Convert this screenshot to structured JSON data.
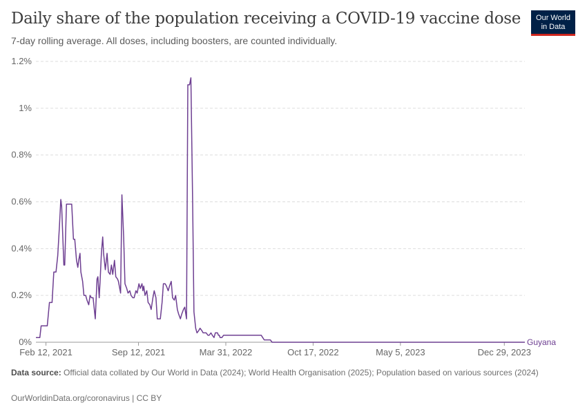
{
  "header": {
    "title": "Daily share of the population receiving a COVID-19 vaccine dose",
    "subtitle": "7-day rolling average. All doses, including boosters, are counted individually.",
    "logo_line1": "Our World",
    "logo_line2": "in Data"
  },
  "footer": {
    "source_label": "Data source:",
    "source_text": "Official data collated by Our World in Data (2024); World Health Organisation (2025); Population based on various sources (2024)",
    "license": "OurWorldinData.org/coronavirus | CC BY"
  },
  "colors": {
    "series": "#6d3e91",
    "grid": "#dddddd",
    "axis": "#999999",
    "text": "#666666"
  },
  "chart_data": {
    "type": "line",
    "ylim": [
      0,
      1.2
    ],
    "y_ticks": [
      0,
      0.2,
      0.4,
      0.6,
      0.8,
      1,
      1.2
    ],
    "y_tick_labels": [
      "0%",
      "0.2%",
      "0.4%",
      "0.6%",
      "0.8%",
      "1%",
      "1.2%"
    ],
    "xlim": [
      "2021-01-20",
      "2024-02-14"
    ],
    "x_ticks": [
      "2021-02-12",
      "2021-09-12",
      "2022-03-31",
      "2022-10-17",
      "2023-05-05",
      "2023-12-29"
    ],
    "x_tick_labels": [
      "Feb 12, 2021",
      "Sep 12, 2021",
      "Mar 31, 2022",
      "Oct 17, 2022",
      "May 5, 2023",
      "Dec 29, 2023"
    ],
    "grid": true,
    "series": [
      {
        "name": "Guyana",
        "x": [
          "2021-01-20",
          "2021-01-29",
          "2021-02-01",
          "2021-02-15",
          "2021-02-20",
          "2021-02-26",
          "2021-03-02",
          "2021-03-07",
          "2021-03-11",
          "2021-03-15",
          "2021-03-18",
          "2021-03-20",
          "2021-03-25",
          "2021-03-27",
          "2021-03-31",
          "2021-04-05",
          "2021-04-12",
          "2021-04-16",
          "2021-04-19",
          "2021-04-23",
          "2021-04-26",
          "2021-04-28",
          "2021-05-01",
          "2021-05-03",
          "2021-05-07",
          "2021-05-10",
          "2021-05-14",
          "2021-05-17",
          "2021-05-21",
          "2021-05-24",
          "2021-05-27",
          "2021-05-31",
          "2021-06-05",
          "2021-06-09",
          "2021-06-11",
          "2021-06-14",
          "2021-06-16",
          "2021-06-19",
          "2021-06-22",
          "2021-06-24",
          "2021-06-28",
          "2021-07-02",
          "2021-07-05",
          "2021-07-09",
          "2021-07-12",
          "2021-07-15",
          "2021-07-19",
          "2021-07-22",
          "2021-07-26",
          "2021-07-28",
          "2021-08-02",
          "2021-08-05",
          "2021-08-09",
          "2021-08-12",
          "2021-08-16",
          "2021-08-19",
          "2021-08-23",
          "2021-08-26",
          "2021-08-30",
          "2021-09-02",
          "2021-09-06",
          "2021-09-09",
          "2021-09-13",
          "2021-09-16",
          "2021-09-20",
          "2021-09-22",
          "2021-09-24",
          "2021-09-27",
          "2021-10-01",
          "2021-10-04",
          "2021-10-08",
          "2021-10-11",
          "2021-10-15",
          "2021-10-18",
          "2021-10-22",
          "2021-10-25",
          "2021-10-29",
          "2021-11-01",
          "2021-11-05",
          "2021-11-08",
          "2021-11-12",
          "2021-11-15",
          "2021-11-19",
          "2021-11-22",
          "2021-11-26",
          "2021-11-29",
          "2021-12-03",
          "2021-12-06",
          "2021-12-10",
          "2021-12-13",
          "2021-12-17",
          "2021-12-20",
          "2021-12-24",
          "2021-12-27",
          "2021-12-31",
          "2022-01-03",
          "2022-01-07",
          "2022-01-10",
          "2022-01-14",
          "2022-01-17",
          "2022-01-21",
          "2022-01-24",
          "2022-01-28",
          "2022-01-31",
          "2022-02-04",
          "2022-02-07",
          "2022-02-11",
          "2022-02-14",
          "2022-02-18",
          "2022-02-21",
          "2022-02-25",
          "2022-02-28",
          "2022-03-04",
          "2022-03-07",
          "2022-03-10",
          "2022-03-12",
          "2022-03-14",
          "2022-03-16",
          "2022-03-18",
          "2022-03-20",
          "2022-03-22",
          "2022-03-26",
          "2022-04-01",
          "2022-04-07",
          "2022-04-14",
          "2022-04-25",
          "2022-05-05",
          "2022-05-16",
          "2022-05-23",
          "2022-05-30",
          "2022-06-06",
          "2022-06-13",
          "2022-06-20",
          "2022-06-27",
          "2022-07-04",
          "2022-07-08",
          "2022-07-11",
          "2022-07-15",
          "2022-07-22",
          "2023-01-23",
          "2023-02-01",
          "2023-03-20",
          "2023-03-27",
          "2024-02-14"
        ],
        "values": [
          0.02,
          0.02,
          0.07,
          0.07,
          0.17,
          0.17,
          0.3,
          0.3,
          0.37,
          0.5,
          0.61,
          0.58,
          0.33,
          0.33,
          0.59,
          0.59,
          0.59,
          0.44,
          0.44,
          0.35,
          0.32,
          0.35,
          0.38,
          0.3,
          0.26,
          0.2,
          0.2,
          0.18,
          0.16,
          0.2,
          0.19,
          0.19,
          0.1,
          0.27,
          0.28,
          0.19,
          0.26,
          0.38,
          0.45,
          0.38,
          0.31,
          0.38,
          0.3,
          0.29,
          0.33,
          0.29,
          0.35,
          0.28,
          0.27,
          0.26,
          0.21,
          0.63,
          0.45,
          0.25,
          0.23,
          0.21,
          0.22,
          0.2,
          0.19,
          0.19,
          0.22,
          0.21,
          0.25,
          0.23,
          0.25,
          0.22,
          0.24,
          0.2,
          0.22,
          0.17,
          0.16,
          0.14,
          0.19,
          0.22,
          0.19,
          0.1,
          0.1,
          0.1,
          0.17,
          0.25,
          0.25,
          0.24,
          0.22,
          0.24,
          0.26,
          0.19,
          0.18,
          0.2,
          0.14,
          0.12,
          0.1,
          0.12,
          0.14,
          0.15,
          0.1,
          1.1,
          1.1,
          1.13,
          0.6,
          0.13,
          0.06,
          0.04,
          0.05,
          0.06,
          0.05,
          0.04,
          0.04,
          0.04,
          0.03,
          0.03,
          0.04,
          0.03,
          0.02,
          0.04,
          0.04,
          0.04,
          0.03,
          0.03,
          0.02,
          0.02,
          0.02,
          0.03,
          0.03,
          0.03,
          0.03,
          0.03,
          0.03,
          0.03,
          0.03,
          0.03,
          0.03,
          0.03,
          0.03,
          0.01,
          0.01,
          0.01,
          0.01,
          0.0,
          0.0,
          0.0,
          0.0,
          0.0,
          0.0,
          0.0
        ]
      }
    ]
  }
}
